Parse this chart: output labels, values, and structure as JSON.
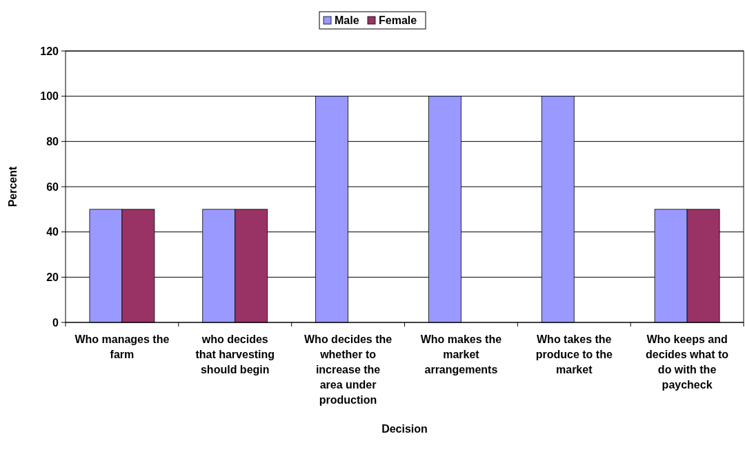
{
  "chart_data": {
    "type": "bar",
    "xlabel": "Decision",
    "ylabel": "Percent",
    "categories": [
      "Who manages the farm",
      "who decides that harvesting should begin",
      "Who decides the whether to increase the area under production",
      "Who makes the market arrangements",
      "Who takes the produce to the market",
      "Who keeps and decides what to do with the paycheck"
    ],
    "series": [
      {
        "name": "Male",
        "color": "#9999ff",
        "values": [
          50,
          50,
          100,
          100,
          100,
          50
        ]
      },
      {
        "name": "Female",
        "color": "#993366",
        "values": [
          50,
          50,
          0,
          0,
          0,
          50
        ]
      }
    ],
    "ylim": [
      0,
      120
    ],
    "yticks": [
      0,
      20,
      40,
      60,
      80,
      100,
      120
    ],
    "grid": "y",
    "legend": "top"
  }
}
